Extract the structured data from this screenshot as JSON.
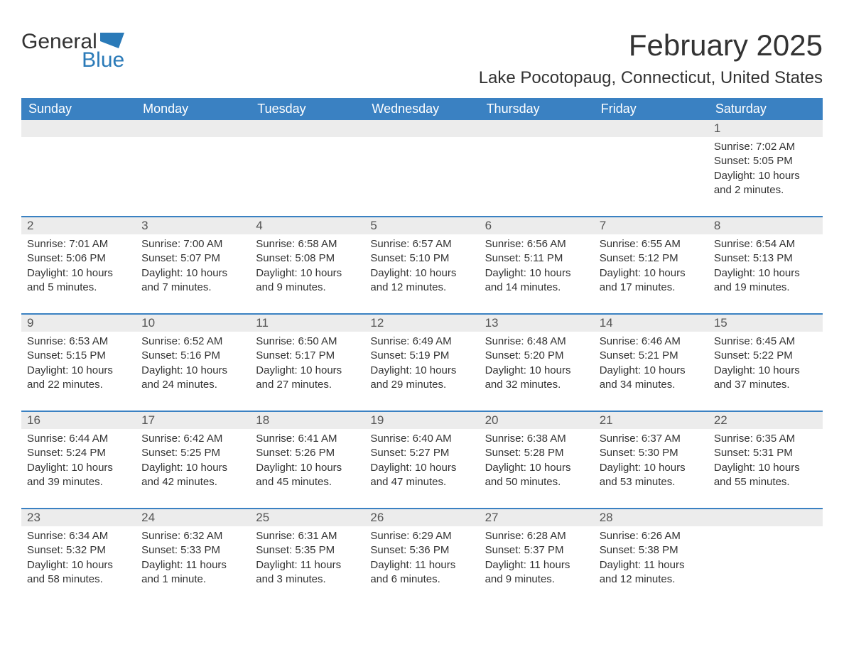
{
  "logo": {
    "line1": "General",
    "line2": "Blue",
    "flag_color": "#2a7ab8"
  },
  "title": "February 2025",
  "location": "Lake Pocotopaug, Connecticut, United States",
  "colors": {
    "header_bg": "#3a81c2",
    "header_text": "#ffffff",
    "daynum_bg": "#ececec",
    "row_border": "#3a81c2",
    "text": "#333333"
  },
  "day_headers": [
    "Sunday",
    "Monday",
    "Tuesday",
    "Wednesday",
    "Thursday",
    "Friday",
    "Saturday"
  ],
  "weeks": [
    [
      null,
      null,
      null,
      null,
      null,
      null,
      {
        "n": "1",
        "sr": "Sunrise: 7:02 AM",
        "ss": "Sunset: 5:05 PM",
        "dl": "Daylight: 10 hours and 2 minutes."
      }
    ],
    [
      {
        "n": "2",
        "sr": "Sunrise: 7:01 AM",
        "ss": "Sunset: 5:06 PM",
        "dl": "Daylight: 10 hours and 5 minutes."
      },
      {
        "n": "3",
        "sr": "Sunrise: 7:00 AM",
        "ss": "Sunset: 5:07 PM",
        "dl": "Daylight: 10 hours and 7 minutes."
      },
      {
        "n": "4",
        "sr": "Sunrise: 6:58 AM",
        "ss": "Sunset: 5:08 PM",
        "dl": "Daylight: 10 hours and 9 minutes."
      },
      {
        "n": "5",
        "sr": "Sunrise: 6:57 AM",
        "ss": "Sunset: 5:10 PM",
        "dl": "Daylight: 10 hours and 12 minutes."
      },
      {
        "n": "6",
        "sr": "Sunrise: 6:56 AM",
        "ss": "Sunset: 5:11 PM",
        "dl": "Daylight: 10 hours and 14 minutes."
      },
      {
        "n": "7",
        "sr": "Sunrise: 6:55 AM",
        "ss": "Sunset: 5:12 PM",
        "dl": "Daylight: 10 hours and 17 minutes."
      },
      {
        "n": "8",
        "sr": "Sunrise: 6:54 AM",
        "ss": "Sunset: 5:13 PM",
        "dl": "Daylight: 10 hours and 19 minutes."
      }
    ],
    [
      {
        "n": "9",
        "sr": "Sunrise: 6:53 AM",
        "ss": "Sunset: 5:15 PM",
        "dl": "Daylight: 10 hours and 22 minutes."
      },
      {
        "n": "10",
        "sr": "Sunrise: 6:52 AM",
        "ss": "Sunset: 5:16 PM",
        "dl": "Daylight: 10 hours and 24 minutes."
      },
      {
        "n": "11",
        "sr": "Sunrise: 6:50 AM",
        "ss": "Sunset: 5:17 PM",
        "dl": "Daylight: 10 hours and 27 minutes."
      },
      {
        "n": "12",
        "sr": "Sunrise: 6:49 AM",
        "ss": "Sunset: 5:19 PM",
        "dl": "Daylight: 10 hours and 29 minutes."
      },
      {
        "n": "13",
        "sr": "Sunrise: 6:48 AM",
        "ss": "Sunset: 5:20 PM",
        "dl": "Daylight: 10 hours and 32 minutes."
      },
      {
        "n": "14",
        "sr": "Sunrise: 6:46 AM",
        "ss": "Sunset: 5:21 PM",
        "dl": "Daylight: 10 hours and 34 minutes."
      },
      {
        "n": "15",
        "sr": "Sunrise: 6:45 AM",
        "ss": "Sunset: 5:22 PM",
        "dl": "Daylight: 10 hours and 37 minutes."
      }
    ],
    [
      {
        "n": "16",
        "sr": "Sunrise: 6:44 AM",
        "ss": "Sunset: 5:24 PM",
        "dl": "Daylight: 10 hours and 39 minutes."
      },
      {
        "n": "17",
        "sr": "Sunrise: 6:42 AM",
        "ss": "Sunset: 5:25 PM",
        "dl": "Daylight: 10 hours and 42 minutes."
      },
      {
        "n": "18",
        "sr": "Sunrise: 6:41 AM",
        "ss": "Sunset: 5:26 PM",
        "dl": "Daylight: 10 hours and 45 minutes."
      },
      {
        "n": "19",
        "sr": "Sunrise: 6:40 AM",
        "ss": "Sunset: 5:27 PM",
        "dl": "Daylight: 10 hours and 47 minutes."
      },
      {
        "n": "20",
        "sr": "Sunrise: 6:38 AM",
        "ss": "Sunset: 5:28 PM",
        "dl": "Daylight: 10 hours and 50 minutes."
      },
      {
        "n": "21",
        "sr": "Sunrise: 6:37 AM",
        "ss": "Sunset: 5:30 PM",
        "dl": "Daylight: 10 hours and 53 minutes."
      },
      {
        "n": "22",
        "sr": "Sunrise: 6:35 AM",
        "ss": "Sunset: 5:31 PM",
        "dl": "Daylight: 10 hours and 55 minutes."
      }
    ],
    [
      {
        "n": "23",
        "sr": "Sunrise: 6:34 AM",
        "ss": "Sunset: 5:32 PM",
        "dl": "Daylight: 10 hours and 58 minutes."
      },
      {
        "n": "24",
        "sr": "Sunrise: 6:32 AM",
        "ss": "Sunset: 5:33 PM",
        "dl": "Daylight: 11 hours and 1 minute."
      },
      {
        "n": "25",
        "sr": "Sunrise: 6:31 AM",
        "ss": "Sunset: 5:35 PM",
        "dl": "Daylight: 11 hours and 3 minutes."
      },
      {
        "n": "26",
        "sr": "Sunrise: 6:29 AM",
        "ss": "Sunset: 5:36 PM",
        "dl": "Daylight: 11 hours and 6 minutes."
      },
      {
        "n": "27",
        "sr": "Sunrise: 6:28 AM",
        "ss": "Sunset: 5:37 PM",
        "dl": "Daylight: 11 hours and 9 minutes."
      },
      {
        "n": "28",
        "sr": "Sunrise: 6:26 AM",
        "ss": "Sunset: 5:38 PM",
        "dl": "Daylight: 11 hours and 12 minutes."
      },
      null
    ]
  ]
}
